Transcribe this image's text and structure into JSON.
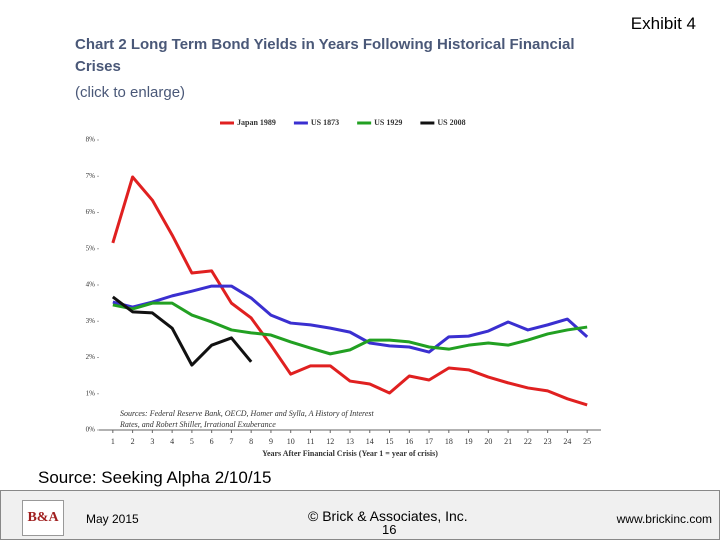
{
  "slide": {
    "exhibit": "Exhibit 4",
    "source": "Source: Seeking Alpha 2/10/15",
    "logo": "B&A",
    "date": "May 2015",
    "copyright": "© Brick & Associates, Inc.",
    "page": "16",
    "website": "www.brickinc.com"
  },
  "chart_data": {
    "type": "line",
    "title": "Chart 2 Long Term Bond Yields in Years Following Historical Financial Crises",
    "subtitle": "(click to enlarge)",
    "xlabel": "Years After Financial Crisis (Year 1 = year of crisis)",
    "note": "Sources: Federal Reserve Bank, OECD, Homer and Sylla, A History of Interest Rates, and Robert Shiller, Irrational Exuberance",
    "x": [
      1,
      2,
      3,
      4,
      5,
      6,
      7,
      8,
      9,
      10,
      11,
      12,
      13,
      14,
      15,
      16,
      17,
      18,
      19,
      20,
      21,
      22,
      23,
      24,
      25
    ],
    "xlim": [
      0.3,
      25.7
    ],
    "xticks": [
      1,
      2,
      3,
      4,
      5,
      6,
      7,
      8,
      9,
      10,
      11,
      12,
      13,
      14,
      15,
      16,
      17,
      18,
      19,
      20,
      21,
      22,
      23,
      24,
      25
    ],
    "ylim": [
      0,
      8
    ],
    "yticks": [
      {
        "value": 0,
        "label": "0%"
      },
      {
        "value": 1,
        "label": "1%"
      },
      {
        "value": 2,
        "label": "2%"
      },
      {
        "value": 3,
        "label": "3%"
      },
      {
        "value": 4,
        "label": "4%"
      },
      {
        "value": 5,
        "label": "5%"
      },
      {
        "value": 6,
        "label": "6%"
      },
      {
        "value": 7,
        "label": "7%"
      },
      {
        "value": 8,
        "label": "8%"
      }
    ],
    "legend": "top",
    "series": [
      {
        "name": "Japan 1989",
        "color": "#e02020",
        "values": [
          5.16,
          6.98,
          6.34,
          5.38,
          4.33,
          4.39,
          3.5,
          3.09,
          2.34,
          1.54,
          1.77,
          1.77,
          1.35,
          1.27,
          1.02,
          1.49,
          1.38,
          1.71,
          1.66,
          1.46,
          1.3,
          1.16,
          1.08,
          0.86,
          0.69
        ]
      },
      {
        "name": "US 1873",
        "color": "#3a2fd0",
        "values": [
          3.53,
          3.39,
          3.53,
          3.7,
          3.83,
          3.97,
          3.97,
          3.64,
          3.17,
          2.95,
          2.9,
          2.81,
          2.7,
          2.4,
          2.32,
          2.29,
          2.15,
          2.57,
          2.59,
          2.73,
          2.98,
          2.76,
          2.9,
          3.06,
          2.57
        ]
      },
      {
        "name": "US 1929",
        "color": "#22a022",
        "values": [
          3.45,
          3.34,
          3.5,
          3.5,
          3.17,
          2.98,
          2.76,
          2.68,
          2.62,
          2.43,
          2.26,
          2.1,
          2.21,
          2.48,
          2.48,
          2.43,
          2.29,
          2.23,
          2.34,
          2.4,
          2.34,
          2.48,
          2.65,
          2.76,
          2.84
        ]
      },
      {
        "name": "US 2008",
        "color": "#111111",
        "values": [
          3.67,
          3.26,
          3.23,
          2.81,
          1.79,
          2.34,
          2.54,
          1.88,
          null,
          null,
          null,
          null,
          null,
          null,
          null,
          null,
          null,
          null,
          null,
          null,
          null,
          null,
          null,
          null,
          null
        ]
      }
    ]
  }
}
